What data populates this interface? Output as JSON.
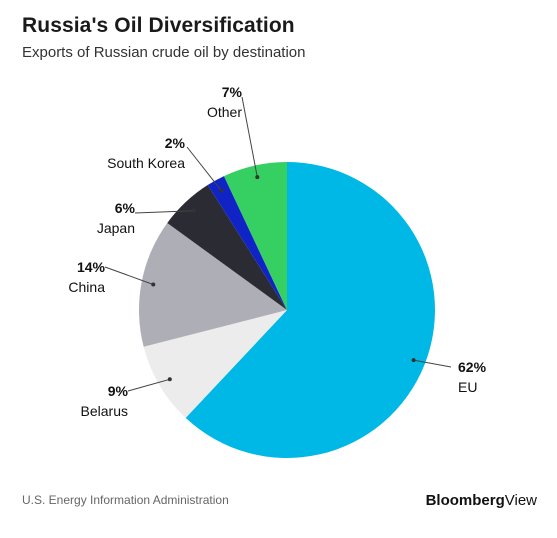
{
  "header": {
    "title": "Russia's Oil Diversification",
    "subtitle": "Exports of Russian crude oil by destination"
  },
  "footer": {
    "source": "U.S. Energy Information Administration",
    "brand_bold": "Bloomberg",
    "brand_regular": "View"
  },
  "chart_data": {
    "type": "pie",
    "title": "Russia's Oil Diversification",
    "subtitle": "Exports of Russian crude oil by destination",
    "slices": [
      {
        "label": "EU",
        "value": 62,
        "display": "62%",
        "color": "#00b8e6"
      },
      {
        "label": "Belarus",
        "value": 9,
        "display": "9%",
        "color": "#ececec"
      },
      {
        "label": "China",
        "value": 14,
        "display": "14%",
        "color": "#aeaeb6"
      },
      {
        "label": "Japan",
        "value": 6,
        "display": "6%",
        "color": "#2b2b33"
      },
      {
        "label": "South Korea",
        "value": 2,
        "display": "2%",
        "color": "#1024c6"
      },
      {
        "label": "Other",
        "value": 7,
        "display": "7%",
        "color": "#36cf62"
      }
    ]
  }
}
